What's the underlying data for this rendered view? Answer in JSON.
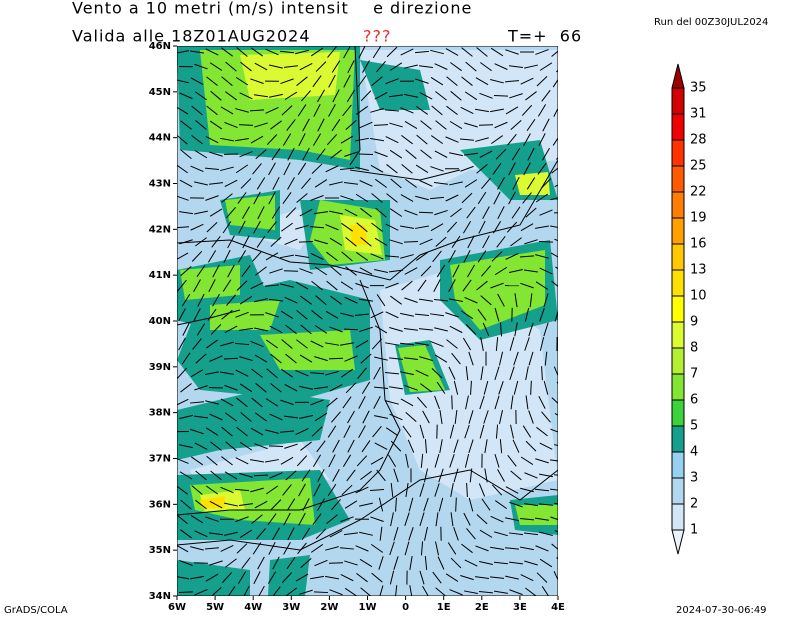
{
  "header": {
    "title": "Vento a 10 metri (m/s) intensit    e direzione",
    "valid": "Valida alle 18Z01AUG2024",
    "missing": "???",
    "step": "T=+  66",
    "run": "Run del 00Z30JUL2024"
  },
  "map": {
    "lat_labels": [
      "46N",
      "45N",
      "44N",
      "43N",
      "42N",
      "41N",
      "40N",
      "39N",
      "38N",
      "37N",
      "36N",
      "35N",
      "34N"
    ],
    "lon_labels": [
      "6W",
      "5W",
      "4W",
      "3W",
      "2W",
      "1W",
      "0",
      "1E",
      "2E",
      "3E",
      "4E"
    ]
  },
  "colorbar": {
    "levels": [
      1,
      2,
      3,
      4,
      5,
      6,
      7,
      8,
      9,
      10,
      13,
      16,
      19,
      22,
      25,
      28,
      31,
      35
    ],
    "colors": [
      "#eaf3fc",
      "#d2e6f8",
      "#b4d7f0",
      "#96d2f0",
      "#14a08c",
      "#3cd23c",
      "#82e632",
      "#b4f032",
      "#dcfa32",
      "#ffff00",
      "#ffe100",
      "#ffc800",
      "#ffa000",
      "#ff7d00",
      "#ff5a00",
      "#ff3200",
      "#f00000",
      "#d20000",
      "#a00000"
    ]
  },
  "footer": {
    "left": "GrADS/COLA",
    "right": "2024-07-30-06:49"
  }
}
